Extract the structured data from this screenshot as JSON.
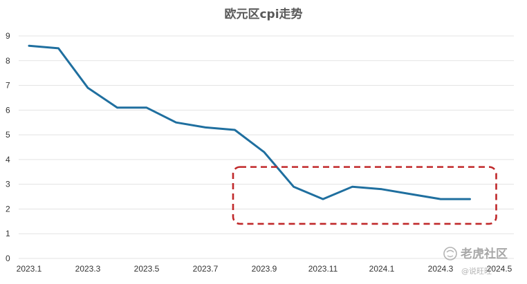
{
  "chart_data": {
    "type": "line",
    "title": "欧元区cpi走势",
    "xlabel": "",
    "ylabel": "",
    "ylim": [
      0,
      9
    ],
    "y_ticks": [
      0,
      1,
      2,
      3,
      4,
      5,
      6,
      7,
      8,
      9
    ],
    "x_tick_labels": [
      "2023.1",
      "2023.3",
      "2023.5",
      "2023.7",
      "2023.9",
      "2023.11",
      "2024.1",
      "2024.3",
      "2024.5"
    ],
    "grid": true,
    "legend": "none",
    "series": [
      {
        "color": "#1f6f9f",
        "x": [
          "2023.1",
          "2023.2",
          "2023.3",
          "2023.4",
          "2023.5",
          "2023.6",
          "2023.7",
          "2023.8",
          "2023.9",
          "2023.10",
          "2023.11",
          "2023.12",
          "2024.1",
          "2024.2",
          "2024.3",
          "2024.4"
        ],
        "values": [
          8.6,
          8.5,
          6.9,
          6.1,
          6.1,
          5.5,
          5.3,
          5.2,
          4.3,
          2.9,
          2.4,
          2.9,
          2.8,
          2.6,
          2.4,
          2.4
        ]
      }
    ],
    "highlight": {
      "shape": "dashed-rounded-rectangle",
      "color": "#c0282a",
      "x_range": [
        "2023.9",
        "2024.4"
      ],
      "y_range": [
        1.4,
        3.7
      ]
    }
  },
  "watermark": {
    "brand": "老虎社区",
    "handle": "@说旺旺"
  },
  "colors": {
    "line": "#1f6f9f",
    "highlight": "#c0282a",
    "grid": "#e3e3e3"
  }
}
